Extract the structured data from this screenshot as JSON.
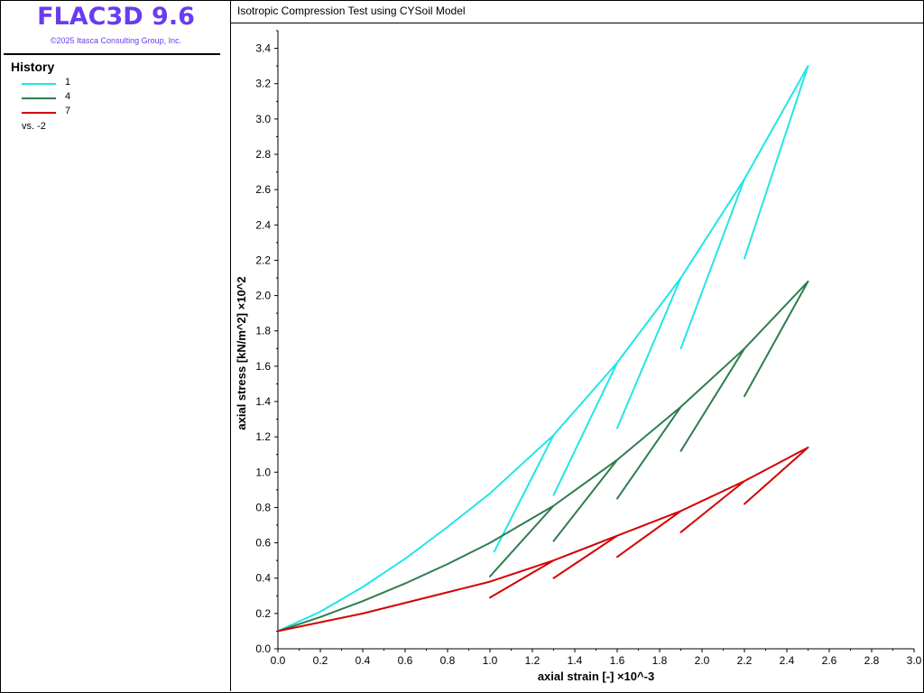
{
  "app": {
    "title": "FLAC3D 9.6",
    "copyright": "©2025 Itasca Consulting Group, Inc."
  },
  "legend": {
    "heading": "History",
    "items": [
      {
        "label": "1",
        "color": "#22e5e8"
      },
      {
        "label": "4",
        "color": "#2e7d4f"
      },
      {
        "label": "7",
        "color": "#d40000"
      }
    ],
    "vs": "vs. -2"
  },
  "plot": {
    "title": "Isotropic Compression Test using CYSoil Model"
  },
  "chart_data": {
    "type": "line",
    "xlabel": "axial strain [-] ×10^-3",
    "ylabel": "axial stress [kN/m^2] ×10^2",
    "xlim": [
      0,
      3.0
    ],
    "ylim": [
      0,
      3.5
    ],
    "x_ticks": [
      "0.0",
      "0.2",
      "0.4",
      "0.6",
      "0.8",
      "1.0",
      "1.2",
      "1.4",
      "1.6",
      "1.8",
      "2.0",
      "2.2",
      "2.4",
      "2.6",
      "2.8",
      "3.0"
    ],
    "y_ticks": [
      "0.0",
      "0.2",
      "0.4",
      "0.6",
      "0.8",
      "1.0",
      "1.2",
      "1.4",
      "1.6",
      "1.8",
      "2.0",
      "2.2",
      "2.4",
      "2.6",
      "2.8",
      "3.0",
      "3.2",
      "3.4"
    ],
    "grid": false,
    "series": [
      {
        "name": "1",
        "color": "#22e5e8",
        "x": [
          0.0,
          0.2,
          0.4,
          0.6,
          0.8,
          1.0,
          1.2,
          1.3,
          1.02,
          1.3,
          1.6,
          1.3,
          1.6,
          1.9,
          1.6,
          1.9,
          2.2,
          1.9,
          2.2,
          2.5,
          2.2,
          2.5
        ],
        "y": [
          0.1,
          0.21,
          0.35,
          0.51,
          0.69,
          0.88,
          1.1,
          1.21,
          0.55,
          1.21,
          1.62,
          0.87,
          1.62,
          2.1,
          1.25,
          2.1,
          2.66,
          1.7,
          2.66,
          3.3,
          2.21,
          3.3
        ]
      },
      {
        "name": "4",
        "color": "#2e7d4f",
        "x": [
          0.0,
          0.2,
          0.4,
          0.6,
          0.8,
          1.0,
          1.3,
          1.0,
          1.3,
          1.6,
          1.3,
          1.6,
          1.9,
          1.6,
          1.9,
          2.2,
          1.9,
          2.2,
          2.5,
          2.2,
          2.5
        ],
        "y": [
          0.1,
          0.18,
          0.27,
          0.37,
          0.48,
          0.6,
          0.81,
          0.41,
          0.81,
          1.07,
          0.61,
          1.07,
          1.37,
          0.85,
          1.37,
          1.7,
          1.12,
          1.7,
          2.08,
          1.43,
          2.08
        ]
      },
      {
        "name": "7",
        "color": "#d40000",
        "x": [
          0.0,
          0.2,
          0.4,
          0.6,
          0.8,
          1.0,
          1.3,
          1.0,
          1.3,
          1.6,
          1.3,
          1.6,
          1.9,
          1.6,
          1.9,
          2.2,
          1.9,
          2.2,
          2.5,
          2.2,
          2.5
        ],
        "y": [
          0.1,
          0.15,
          0.2,
          0.26,
          0.32,
          0.38,
          0.5,
          0.29,
          0.5,
          0.64,
          0.4,
          0.64,
          0.78,
          0.52,
          0.78,
          0.95,
          0.66,
          0.95,
          1.14,
          0.82,
          1.14
        ]
      }
    ]
  }
}
